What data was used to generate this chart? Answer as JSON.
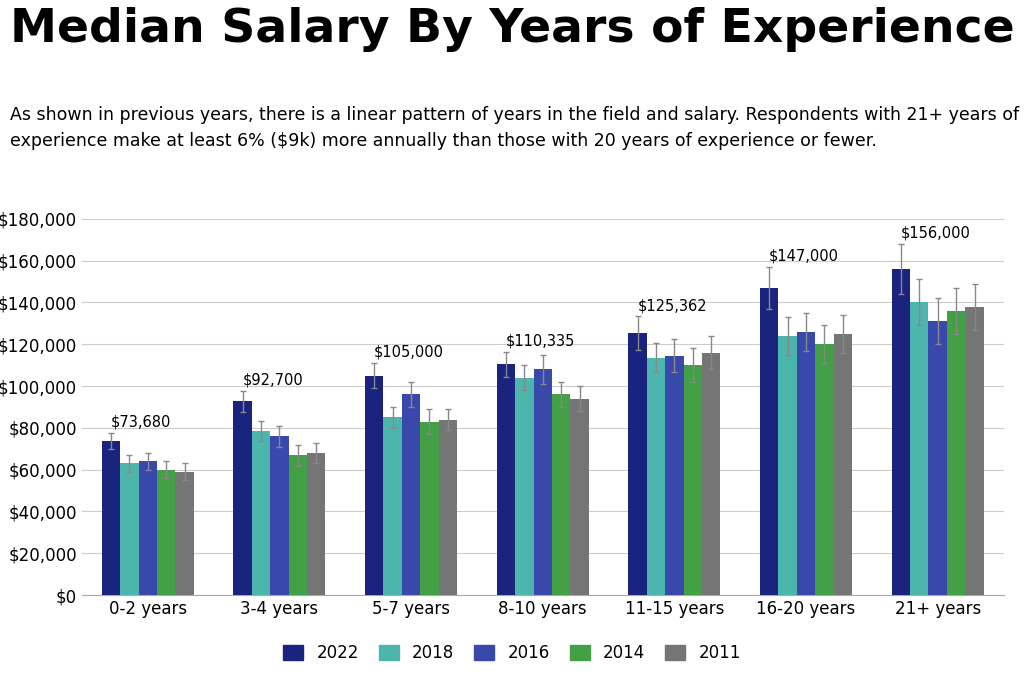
{
  "title": "Median Salary By Years of Experience",
  "subtitle": "As shown in previous years, there is a linear pattern of years in the field and salary. Respondents with 21+ years of\nexperience make at least 6% ($9k) more annually than those with 20 years of experience or fewer.",
  "categories": [
    "0-2 years",
    "3-4 years",
    "5-7 years",
    "8-10 years",
    "11-15 years",
    "16-20 years",
    "21+ years"
  ],
  "years": [
    "2022",
    "2018",
    "2016",
    "2014",
    "2011"
  ],
  "colors": [
    "#1a237e",
    "#4db6ac",
    "#3949ab",
    "#43a047",
    "#757575"
  ],
  "bar_labels": [
    "$73,680",
    "$92,700",
    "$105,000",
    "$110,335",
    "$125,362",
    "$147,000",
    "$156,000"
  ],
  "values": {
    "2022": [
      73680,
      92700,
      105000,
      110335,
      125362,
      147000,
      156000
    ],
    "2018": [
      63000,
      78500,
      85000,
      104000,
      113500,
      124000,
      140000
    ],
    "2016": [
      64000,
      76000,
      96000,
      108000,
      114500,
      126000,
      131000
    ],
    "2014": [
      60000,
      67000,
      83000,
      96000,
      110000,
      120000,
      136000
    ],
    "2011": [
      59000,
      68000,
      84000,
      94000,
      116000,
      125000,
      138000
    ]
  },
  "errors": {
    "2022": [
      4000,
      5000,
      6000,
      6000,
      8000,
      10000,
      12000
    ],
    "2018": [
      4000,
      5000,
      5000,
      6000,
      7000,
      9000,
      11000
    ],
    "2016": [
      4000,
      5000,
      6000,
      7000,
      8000,
      9000,
      11000
    ],
    "2014": [
      4000,
      5000,
      6000,
      6000,
      8000,
      9000,
      11000
    ],
    "2011": [
      4000,
      5000,
      5000,
      6000,
      8000,
      9000,
      11000
    ]
  },
  "ylim": [
    0,
    180000
  ],
  "yticks": [
    0,
    20000,
    40000,
    60000,
    80000,
    100000,
    120000,
    140000,
    160000,
    180000
  ],
  "background_color": "#ffffff",
  "grid_color": "#cccccc",
  "title_fontsize": 34,
  "subtitle_fontsize": 12.5,
  "tick_fontsize": 12,
  "legend_fontsize": 12,
  "bar_label_fontsize": 10.5
}
